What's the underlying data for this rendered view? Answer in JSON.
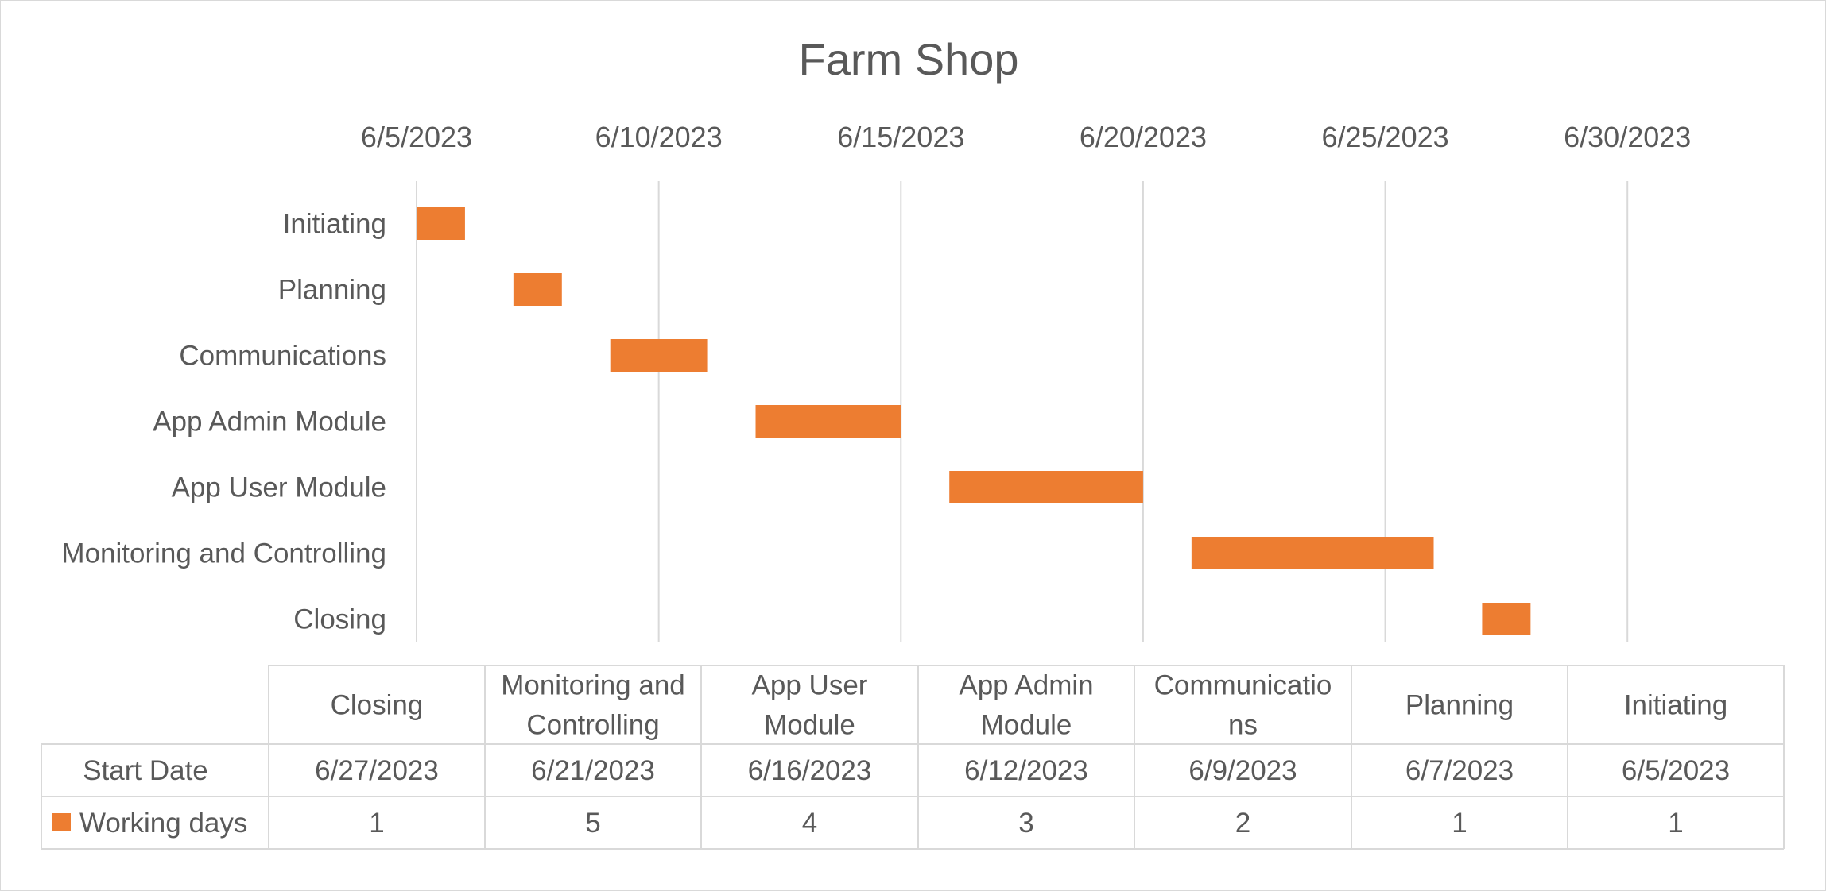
{
  "chart_data": {
    "type": "bar",
    "subtype": "gantt-stacked-horizontal",
    "title": "Farm Shop",
    "categories": [
      "Initiating",
      "Planning",
      "Communications",
      "App Admin Module",
      "App User Module ",
      "Monitoring and Controlling",
      "Closing"
    ],
    "series": [
      {
        "name": "Start Date",
        "role": "invisible-offset",
        "values": [
          "6/5/2023",
          "6/7/2023",
          "6/9/2023",
          "6/12/2023",
          "6/16/2023",
          "6/21/2023",
          "6/27/2023"
        ]
      },
      {
        "name": "Working days",
        "color": "#ed7d31",
        "values": [
          1,
          1,
          2,
          3,
          4,
          5,
          1
        ]
      }
    ],
    "x_axis": {
      "position": "top",
      "ticks": [
        "6/5/2023",
        "6/10/2023",
        "6/15/2023",
        "6/20/2023",
        "6/25/2023",
        "6/30/2023"
      ],
      "range": [
        "6/5/2023",
        "7/3/2023"
      ],
      "gridlines": true
    },
    "data_table": {
      "columns": [
        "Closing",
        "Monitoring and Controlling",
        "App User Module",
        "App Admin Module",
        "Communications",
        "Planning",
        "Initiating"
      ],
      "column_display": [
        [
          "Closing"
        ],
        [
          "Monitoring and",
          "Controlling"
        ],
        [
          "App User",
          "Module"
        ],
        [
          "App Admin",
          "Module"
        ],
        [
          "Communicatio",
          "ns"
        ],
        [
          "Planning"
        ],
        [
          "Initiating"
        ]
      ],
      "rows": [
        {
          "label": "Start Date",
          "values": [
            "6/27/2023",
            "6/21/2023",
            "6/16/2023",
            "6/12/2023",
            "6/9/2023",
            "6/7/2023",
            "6/5/2023"
          ]
        },
        {
          "label": "Working days",
          "legend_key": true,
          "values": [
            "1",
            "5",
            "4",
            "3",
            "2",
            "1",
            "1"
          ]
        }
      ]
    },
    "colors": {
      "bar": "#ed7d31",
      "grid": "#d9d9d9",
      "text": "#595959"
    }
  }
}
